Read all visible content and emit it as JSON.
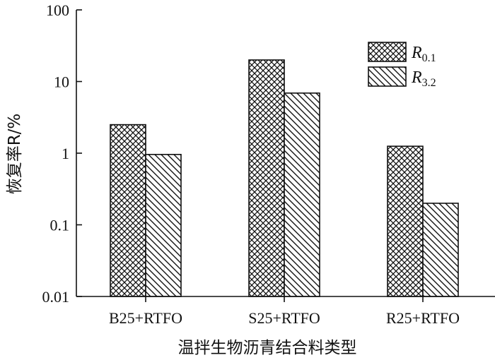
{
  "chart_data": {
    "type": "bar",
    "y_scale": "log",
    "categories": [
      "B25+RTFO",
      "S25+RTFO",
      "R25+RTFO"
    ],
    "series": [
      {
        "name_main": "R",
        "name_sub": "0.1",
        "pattern": "crosshatch",
        "values": [
          2.5,
          20,
          1.25
        ]
      },
      {
        "name_main": "R",
        "name_sub": "3.2",
        "pattern": "diagonal",
        "values": [
          0.96,
          6.9,
          0.2
        ]
      }
    ],
    "ylim": [
      0.01,
      100
    ],
    "y_ticks": [
      {
        "value": 0.01,
        "label": "0.01"
      },
      {
        "value": 0.1,
        "label": "0.1"
      },
      {
        "value": 1,
        "label": "1"
      },
      {
        "value": 10,
        "label": "10"
      },
      {
        "value": 100,
        "label": "100"
      }
    ],
    "xlabel": "温拌生物沥青结合料类型",
    "ylabel": "恢复率R/%",
    "legend_position": "top-right"
  }
}
